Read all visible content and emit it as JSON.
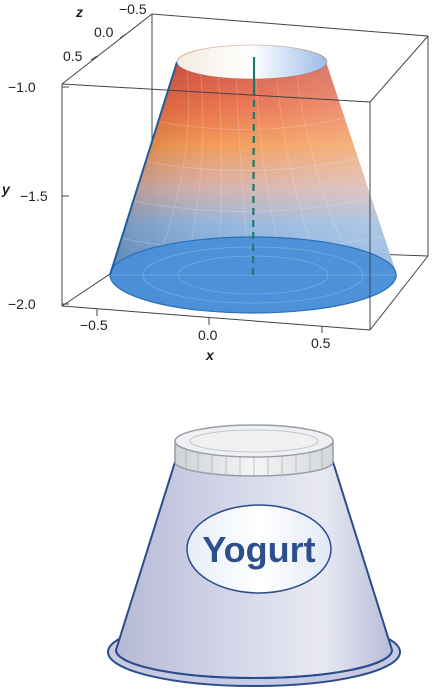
{
  "plot": {
    "axes": {
      "x": {
        "name": "x",
        "ticks": [
          "−0.5",
          "0.0",
          "0.5"
        ]
      },
      "y": {
        "name": "y",
        "ticks": [
          "−1.0",
          "−1.5",
          "−2.0"
        ]
      },
      "z": {
        "name": "z",
        "ticks": [
          "−0.5",
          "0.0",
          "0.5"
        ]
      }
    },
    "colors": {
      "top": "#d94a2a",
      "middle": "#f08a3c",
      "bottom": "#4f92d8",
      "axis_line": "#1a7a6e",
      "rim": "#2f6fb5"
    }
  },
  "container": {
    "label": "Yogurt",
    "colors": {
      "body": "#c5c8e0",
      "lid": "#e6e8ea",
      "label_text": "#2d4f8c",
      "outline": "#2b4c8a"
    }
  }
}
